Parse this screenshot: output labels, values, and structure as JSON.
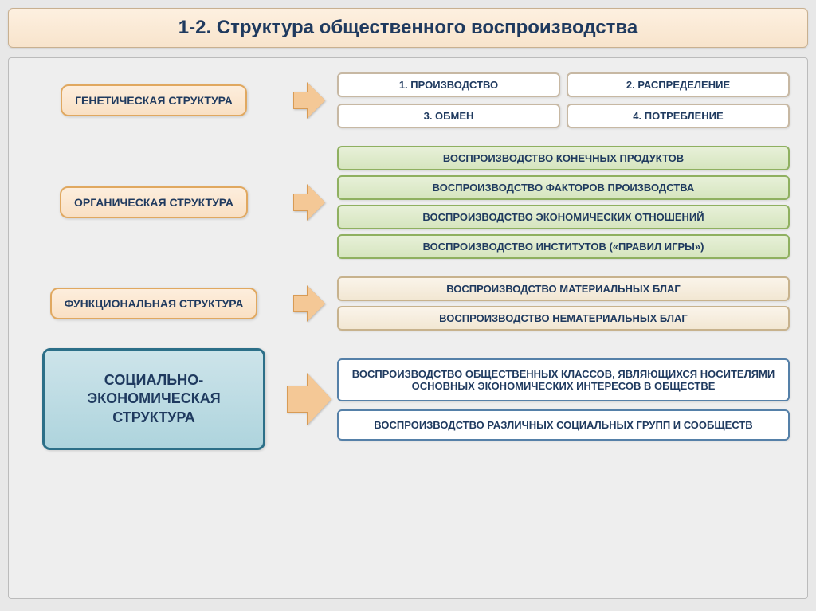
{
  "title": "1-2. Структура общественного воспроизводства",
  "colors": {
    "page_bg": "#e8e8e8",
    "container_bg": "#eeeeee",
    "title_bg_top": "#fdf0e0",
    "title_bg_bottom": "#f8e4cc",
    "title_text": "#1f3a5f",
    "orange_box_bg": "#f9e0c4",
    "orange_box_border": "#e0a860",
    "blue_box_bg": "#aed4dd",
    "blue_box_border": "#2c6f88",
    "green_box_bg": "#d6e5bf",
    "green_box_border": "#8fb060",
    "tan_box_bg": "#f2e7d3",
    "tan_box_border": "#c7b28d",
    "white_box_border": "#c7b8a3",
    "blue_outline_border": "#5580a8",
    "arrow_fill": "#f4c896",
    "arrow_border": "#d89b55"
  },
  "sections": [
    {
      "label": "ГЕНЕТИЧЕСКАЯ СТРУКТУРА",
      "label_style": "orange",
      "label_size": "small",
      "arrow_size": "small",
      "items_layout": "grid2x2",
      "items_style": "white",
      "items": [
        "1. ПРОИЗВОДСТВО",
        "2. РАСПРЕДЕЛЕНИЕ",
        "3. ОБМЕН",
        "4. ПОТРЕБЛЕНИЕ"
      ]
    },
    {
      "label": "ОРГАНИЧЕСКАЯ СТРУКТУРА",
      "label_style": "orange",
      "label_size": "small",
      "arrow_size": "small",
      "items_layout": "stack",
      "items_style": "green",
      "items": [
        "ВОСПРОИЗВОДСТВО КОНЕЧНЫХ ПРОДУКТОВ",
        "ВОСПРОИЗВОДСТВО ФАКТОРОВ ПРОИЗВОДСТВА",
        "ВОСПРОИЗВОДСТВО ЭКОНОМИЧЕСКИХ ОТНОШЕНИЙ",
        "ВОСПРОИЗВОДСТВО ИНСТИТУТОВ («ПРАВИЛ ИГРЫ»)"
      ]
    },
    {
      "label": "ФУНКЦИОНАЛЬНАЯ СТРУКТУРА",
      "label_style": "orange",
      "label_size": "small",
      "arrow_size": "small",
      "items_layout": "stack",
      "items_style": "tan",
      "items": [
        "ВОСПРОИЗВОДСТВО МАТЕРИАЛЬНЫХ БЛАГ",
        "ВОСПРОИЗВОДСТВО НЕМАТЕРИАЛЬНЫХ БЛАГ"
      ]
    },
    {
      "label": "СОЦИАЛЬНО-ЭКОНОМИЧЕСКАЯ СТРУКТУРА",
      "label_style": "blue",
      "label_size": "big",
      "arrow_size": "big",
      "items_layout": "stack",
      "items_style": "blue-outline",
      "items": [
        "ВОСПРОИЗВОДСТВО ОБЩЕСТВЕННЫХ КЛАССОВ, ЯВЛЯЮЩИХСЯ НОСИТЕЛЯМИ ОСНОВНЫХ ЭКОНОМИЧЕСКИХ ИНТЕРЕСОВ В ОБЩЕСТВЕ",
        "ВОСПРОИЗВОДСТВО РАЗЛИЧНЫХ СОЦИАЛЬНЫХ ГРУПП И СООБЩЕСТВ"
      ]
    }
  ]
}
